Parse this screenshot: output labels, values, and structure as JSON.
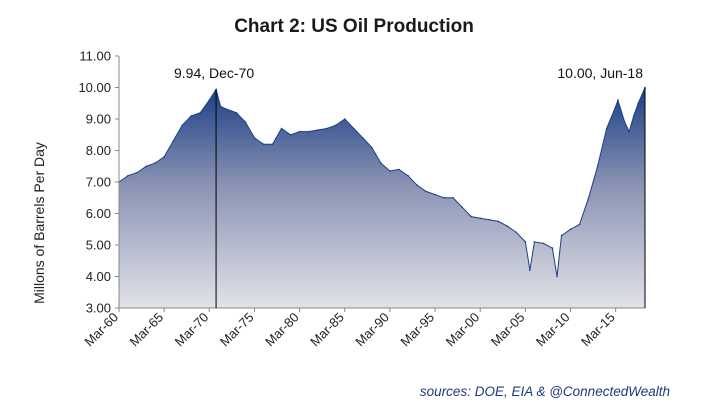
{
  "chart_data": {
    "type": "area",
    "title": "Chart 2: US Oil Production",
    "xlabel": "",
    "ylabel": "Millons of Barrels Per Day",
    "ylim": [
      3.0,
      11.0
    ],
    "yticks": [
      "3.00",
      "4.00",
      "5.00",
      "6.00",
      "7.00",
      "8.00",
      "9.00",
      "10.00",
      "11.00"
    ],
    "xlim": [
      "1960-03",
      "2018-06"
    ],
    "xticks": [
      "Mar-60",
      "Mar-65",
      "Mar-70",
      "Mar-75",
      "Mar-80",
      "Mar-85",
      "Mar-90",
      "Mar-95",
      "Mar-00",
      "Mar-05",
      "Mar-10",
      "Mar-15"
    ],
    "grid": false,
    "legend": "none",
    "colors": {
      "top": "#1b3f86",
      "bottom": "#e2e3e8"
    },
    "series": [
      {
        "x": [
          "1960-03",
          "1961-03",
          "1962-03",
          "1963-03",
          "1964-03",
          "1965-03",
          "1966-03",
          "1967-03",
          "1968-03",
          "1969-03",
          "1970-03",
          "1970-12",
          "1971-06",
          "1972-03",
          "1973-03",
          "1974-03",
          "1975-03",
          "1976-03",
          "1977-03",
          "1978-03",
          "1979-03",
          "1980-03",
          "1981-03",
          "1982-03",
          "1983-03",
          "1984-03",
          "1985-03",
          "1986-03",
          "1987-03",
          "1988-03",
          "1989-03",
          "1990-03",
          "1991-03",
          "1992-03",
          "1993-03",
          "1994-03",
          "1995-03",
          "1996-03",
          "1997-03",
          "1998-03",
          "1999-03",
          "2000-03",
          "2001-03",
          "2002-03",
          "2003-03",
          "2004-03",
          "2005-03",
          "2005-09",
          "2006-03",
          "2007-03",
          "2008-03",
          "2008-09",
          "2009-03",
          "2010-03",
          "2011-03",
          "2012-03",
          "2013-03",
          "2014-03",
          "2015-03",
          "2015-06",
          "2016-03",
          "2016-09",
          "2017-03",
          "2017-09",
          "2018-06"
        ],
        "values": [
          7.0,
          7.2,
          7.3,
          7.5,
          7.6,
          7.8,
          8.3,
          8.8,
          9.1,
          9.2,
          9.6,
          9.94,
          9.4,
          9.3,
          9.2,
          8.9,
          8.4,
          8.2,
          8.2,
          8.7,
          8.5,
          8.6,
          8.6,
          8.65,
          8.7,
          8.8,
          9.0,
          8.7,
          8.4,
          8.1,
          7.6,
          7.35,
          7.4,
          7.2,
          6.9,
          6.7,
          6.6,
          6.5,
          6.5,
          6.2,
          5.9,
          5.85,
          5.8,
          5.75,
          5.6,
          5.4,
          5.1,
          4.2,
          5.1,
          5.05,
          4.9,
          4.0,
          5.3,
          5.5,
          5.65,
          6.5,
          7.5,
          8.7,
          9.4,
          9.6,
          8.9,
          8.6,
          9.1,
          9.5,
          10.0
        ]
      }
    ],
    "annotations": [
      {
        "text": "9.94, Dec-70",
        "x": "1970-12",
        "y": 9.94
      },
      {
        "text": "10.00, Jun-18",
        "x": "2018-06",
        "y": 10.0
      }
    ],
    "source": "sources: DOE, EIA & @ConnectedWealth"
  }
}
